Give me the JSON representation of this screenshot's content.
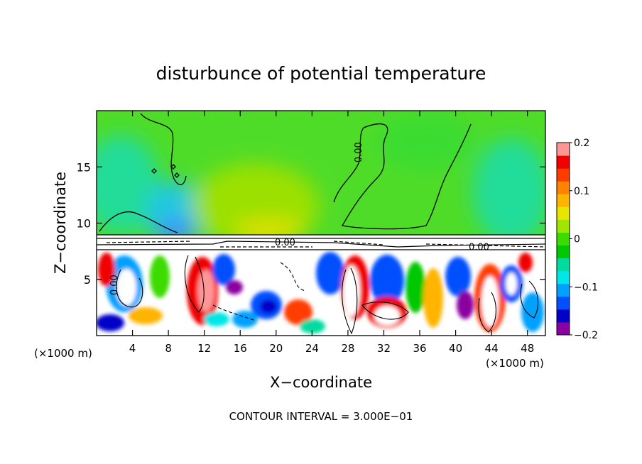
{
  "chart_data": {
    "type": "heatmap",
    "title": "disturbunce of potential temperature",
    "xlabel": "X−coordinate",
    "ylabel": "Z−coordinate",
    "x_unit_left": "(×1000 m)",
    "x_unit_right": "(×1000 m)",
    "footer": "CONTOUR INTERVAL = 3.000E−01",
    "xlim": [
      0,
      50
    ],
    "ylim": [
      0,
      20
    ],
    "x_ticks": [
      4,
      8,
      12,
      16,
      20,
      24,
      28,
      32,
      36,
      40,
      44,
      48
    ],
    "y_ticks": [
      5,
      10,
      15
    ],
    "colorbar": {
      "range": [
        -0.2,
        0.2
      ],
      "tick_labels": [
        "0.2",
        "0.1",
        "0",
        "−0.1",
        "−0.2"
      ],
      "tick_values": [
        0.2,
        0.1,
        0,
        -0.1,
        -0.2
      ],
      "colors": [
        "#8a00a0",
        "#0000c8",
        "#0050ff",
        "#00a0ff",
        "#00e6e6",
        "#00dca0",
        "#00c800",
        "#3cdc00",
        "#a0e600",
        "#e6e600",
        "#ffb400",
        "#ff8200",
        "#ff3c00",
        "#f00000",
        "#ff9696"
      ]
    },
    "contour_labels": [
      {
        "x": 29.5,
        "y": 16.3,
        "text": "0.00"
      },
      {
        "x": 2.3,
        "y": 4.5,
        "text": "0.00"
      },
      {
        "x": 42.6,
        "y": 7.6,
        "text": "0.00"
      },
      {
        "x": 21.0,
        "y": 8.0,
        "text": "0.00"
      }
    ],
    "fields": {
      "upper_layer": {
        "z_range": [
          9,
          20
        ],
        "value_range": [
          -0.04,
          0.05
        ]
      },
      "lower_layer": {
        "z_range": [
          0,
          7.6
        ],
        "value_range": [
          -0.2,
          0.2
        ]
      }
    }
  }
}
